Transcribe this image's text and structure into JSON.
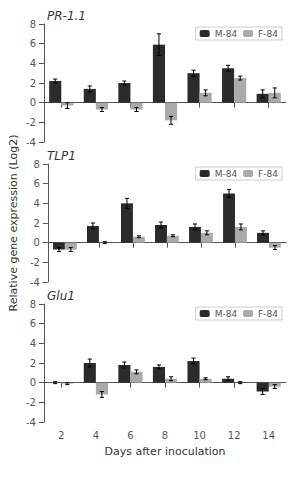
{
  "chart_data": [
    {
      "type": "bar",
      "title": "PR-1.1",
      "categories": [
        2,
        4,
        6,
        8,
        10,
        12,
        14
      ],
      "series": [
        {
          "name": "M-84",
          "color": "#2b2b2b",
          "values": [
            2.2,
            1.4,
            2.0,
            5.9,
            3.0,
            3.5,
            0.9
          ],
          "errors": [
            0.2,
            0.3,
            0.2,
            1.1,
            0.3,
            0.3,
            0.4
          ]
        },
        {
          "name": "F-84",
          "color": "#aaaaaa",
          "values": [
            -0.3,
            -0.7,
            -0.7,
            -1.8,
            1.0,
            2.5,
            1.0
          ],
          "errors": [
            0.3,
            0.2,
            0.2,
            0.4,
            0.3,
            0.2,
            0.5
          ]
        }
      ],
      "ylim": [
        -4,
        8
      ],
      "yticks": [
        -4,
        -2,
        0,
        2,
        4,
        6,
        8
      ],
      "grid": false,
      "legend": "upper right",
      "tick_labels": "y"
    },
    {
      "type": "bar",
      "title": "TLP1",
      "categories": [
        2,
        4,
        6,
        8,
        10,
        12,
        14
      ],
      "series": [
        {
          "name": "M-84",
          "color": "#2b2b2b",
          "values": [
            -0.7,
            1.7,
            4.0,
            1.8,
            1.6,
            5.0,
            1.0
          ],
          "errors": [
            0.2,
            0.3,
            0.5,
            0.3,
            0.3,
            0.4,
            0.2
          ]
        },
        {
          "name": "F-84",
          "color": "#aaaaaa",
          "values": [
            -0.7,
            0.0,
            0.6,
            0.7,
            1.0,
            1.6,
            -0.5
          ],
          "errors": [
            0.2,
            0.1,
            0.1,
            0.1,
            0.2,
            0.3,
            0.2
          ]
        }
      ],
      "ylim": [
        -4,
        8
      ],
      "yticks": [
        -4,
        -2,
        0,
        2,
        4,
        6,
        8
      ],
      "ylabel": "Relative gene expression (Log2)",
      "grid": false,
      "legend": "upper right",
      "tick_labels": "y"
    },
    {
      "type": "bar",
      "title": "Glu1",
      "categories": [
        2,
        4,
        6,
        8,
        10,
        12,
        14
      ],
      "series": [
        {
          "name": "M-84",
          "color": "#2b2b2b",
          "values": [
            0.0,
            2.0,
            1.8,
            1.6,
            2.2,
            0.4,
            -0.9
          ],
          "errors": [
            0.1,
            0.4,
            0.3,
            0.2,
            0.3,
            0.2,
            0.3
          ]
        },
        {
          "name": "F-84",
          "color": "#aaaaaa",
          "values": [
            -0.1,
            -1.2,
            1.1,
            0.4,
            0.4,
            0.0,
            -0.4
          ],
          "errors": [
            0.1,
            0.3,
            0.2,
            0.2,
            0.1,
            0.1,
            0.2
          ]
        }
      ],
      "ylim": [
        -4,
        8
      ],
      "yticks": [
        -4,
        -2,
        0,
        2,
        4,
        6,
        8
      ],
      "xlabel": "Days after inoculation",
      "grid": false,
      "legend": "upper right"
    }
  ]
}
